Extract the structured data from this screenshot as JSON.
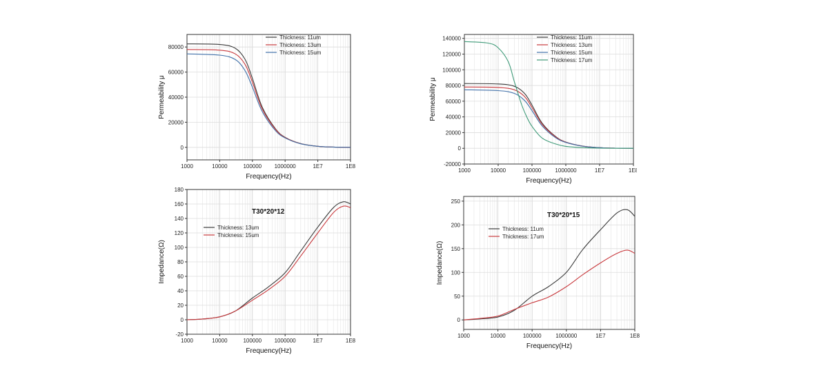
{
  "chart_data": [
    {
      "id": "c1",
      "type": "line",
      "title": "",
      "xlabel": "Frequency(Hz)",
      "ylabel": "Permeability μ",
      "xscale": "log",
      "xlim": [
        1000,
        100000000
      ],
      "ylim": [
        -10000,
        90000
      ],
      "xticks": [
        1000,
        10000,
        100000,
        1000000,
        10000000,
        100000000
      ],
      "xtick_labels": [
        "1000",
        "10000",
        "100000",
        "1000000",
        "1E7",
        "1E8"
      ],
      "yticks": [
        0,
        20000,
        40000,
        60000,
        80000
      ],
      "ytick_labels": [
        "0",
        "20000",
        "40000",
        "60000",
        "80000"
      ],
      "grid": true,
      "legend_position": "top-right",
      "series": [
        {
          "name": "Thickness: 11um",
          "color": "#3a3a3a",
          "x": [
            1000,
            10000,
            30000,
            60000,
            100000,
            200000,
            500000,
            1000000,
            3000000,
            10000000,
            30000000,
            100000000
          ],
          "y": [
            82500,
            82000,
            79000,
            70000,
            55000,
            32000,
            15000,
            8000,
            3000,
            800,
            200,
            0
          ]
        },
        {
          "name": "Thickness: 13um",
          "color": "#c8383c",
          "x": [
            1000,
            10000,
            30000,
            60000,
            100000,
            200000,
            500000,
            1000000,
            3000000,
            10000000,
            30000000,
            100000000
          ],
          "y": [
            78000,
            77500,
            74500,
            66000,
            52000,
            30500,
            14500,
            7800,
            2900,
            800,
            200,
            0
          ]
        },
        {
          "name": "Thickness: 15um",
          "color": "#3f6fa8",
          "x": [
            1000,
            10000,
            30000,
            60000,
            100000,
            200000,
            500000,
            1000000,
            3000000,
            10000000,
            30000000,
            100000000
          ],
          "y": [
            74500,
            73500,
            70000,
            61000,
            48000,
            28500,
            13500,
            7500,
            2800,
            800,
            200,
            0
          ]
        }
      ]
    },
    {
      "id": "c2",
      "type": "line",
      "title": "",
      "xlabel": "Frequency(Hz)",
      "ylabel": "Permeability μ",
      "xscale": "log",
      "xlim": [
        1000,
        100000000
      ],
      "ylim": [
        -20000,
        145000
      ],
      "xticks": [
        1000,
        10000,
        100000,
        1000000,
        10000000,
        100000000
      ],
      "xtick_labels": [
        "1000",
        "10000",
        "100000",
        "1000000",
        "1E7",
        "1E8"
      ],
      "yticks": [
        -20000,
        0,
        20000,
        40000,
        60000,
        80000,
        100000,
        120000,
        140000
      ],
      "ytick_labels": [
        "-20000",
        "0",
        "20000",
        "40000",
        "60000",
        "80000",
        "100000",
        "120000",
        "140000"
      ],
      "grid": true,
      "legend_position": "top-right",
      "series": [
        {
          "name": "Thickness: 11um",
          "color": "#3a3a3a",
          "x": [
            1000,
            10000,
            30000,
            60000,
            100000,
            200000,
            500000,
            1000000,
            3000000,
            10000000,
            30000000,
            100000000
          ],
          "y": [
            82500,
            82000,
            79000,
            70000,
            55000,
            32000,
            15000,
            8000,
            3000,
            800,
            200,
            0
          ]
        },
        {
          "name": "Thickness: 13um",
          "color": "#c8383c",
          "x": [
            1000,
            10000,
            30000,
            60000,
            100000,
            200000,
            500000,
            1000000,
            3000000,
            10000000,
            30000000,
            100000000
          ],
          "y": [
            78000,
            77500,
            74500,
            66000,
            52000,
            30500,
            14500,
            7800,
            2900,
            800,
            200,
            0
          ]
        },
        {
          "name": "Thickness: 15um",
          "color": "#3f6fa8",
          "x": [
            1000,
            10000,
            30000,
            60000,
            100000,
            200000,
            500000,
            1000000,
            3000000,
            10000000,
            30000000,
            100000000
          ],
          "y": [
            74500,
            73500,
            70000,
            61000,
            48000,
            28500,
            13500,
            7500,
            2800,
            800,
            200,
            0
          ]
        },
        {
          "name": "Thickness: 17um",
          "color": "#3e9a78",
          "x": [
            1000,
            5000,
            10000,
            20000,
            30000,
            50000,
            70000,
            100000,
            200000,
            500000,
            1000000,
            3000000,
            10000000,
            100000000
          ],
          "y": [
            136000,
            134000,
            128000,
            110000,
            85000,
            55000,
            40000,
            28000,
            13000,
            5500,
            2500,
            900,
            200,
            0
          ]
        }
      ]
    },
    {
      "id": "c3",
      "type": "line",
      "title": "T30*20*12",
      "xlabel": "Frequency(Hz)",
      "ylabel": "Impedance(Ω)",
      "xscale": "log",
      "xlim": [
        1000,
        100000000
      ],
      "ylim": [
        -20,
        180
      ],
      "xticks": [
        1000,
        10000,
        100000,
        1000000,
        10000000,
        100000000
      ],
      "xtick_labels": [
        "1000",
        "10000",
        "100000",
        "1000000",
        "1E7",
        "1E8"
      ],
      "yticks": [
        -20,
        0,
        20,
        40,
        60,
        80,
        100,
        120,
        140,
        160,
        180
      ],
      "ytick_labels": [
        "-20",
        "0",
        "20",
        "40",
        "60",
        "80",
        "100",
        "120",
        "140",
        "160",
        "180"
      ],
      "grid": true,
      "legend_position": "center-left",
      "series": [
        {
          "name": "Thickness: 13um",
          "color": "#3a3a3a",
          "x": [
            1000,
            3000,
            10000,
            30000,
            100000,
            300000,
            1000000,
            3000000,
            10000000,
            30000000,
            60000000,
            100000000
          ],
          "y": [
            0,
            1,
            4,
            12,
            30,
            45,
            65,
            95,
            128,
            155,
            163,
            160
          ]
        },
        {
          "name": "Thickness: 15um",
          "color": "#c8383c",
          "x": [
            1000,
            3000,
            10000,
            30000,
            100000,
            300000,
            1000000,
            3000000,
            10000000,
            30000000,
            60000000,
            100000000
          ],
          "y": [
            0,
            1,
            4,
            12,
            27,
            41,
            60,
            88,
            120,
            148,
            157,
            155
          ]
        }
      ]
    },
    {
      "id": "c4",
      "type": "line",
      "title": "T30*20*15",
      "xlabel": "Frequency(Hz)",
      "ylabel": "Impedance(Ω)",
      "xscale": "log",
      "xlim": [
        1000,
        100000000
      ],
      "ylim": [
        -20,
        260
      ],
      "xticks": [
        1000,
        10000,
        100000,
        1000000,
        10000000,
        100000000
      ],
      "xtick_labels": [
        "1000",
        "10000",
        "100000",
        "1000000",
        "1E7",
        "1E8"
      ],
      "yticks": [
        0,
        50,
        100,
        150,
        200,
        250
      ],
      "ytick_labels": [
        "0",
        "50",
        "100",
        "150",
        "200",
        "250"
      ],
      "grid": true,
      "legend_position": "upper-left",
      "series": [
        {
          "name": "Thickness: 11um",
          "color": "#3a3a3a",
          "x": [
            1000,
            3000,
            10000,
            30000,
            100000,
            300000,
            1000000,
            3000000,
            10000000,
            30000000,
            60000000,
            100000000
          ],
          "y": [
            0,
            2,
            6,
            20,
            50,
            70,
            100,
            148,
            190,
            225,
            232,
            218
          ]
        },
        {
          "name": "Thickness: 17um",
          "color": "#c8383c",
          "x": [
            1000,
            3000,
            10000,
            30000,
            100000,
            300000,
            1000000,
            3000000,
            10000000,
            30000000,
            60000000,
            100000000
          ],
          "y": [
            0,
            3,
            8,
            22,
            36,
            48,
            70,
            95,
            120,
            140,
            147,
            140
          ]
        }
      ]
    }
  ]
}
